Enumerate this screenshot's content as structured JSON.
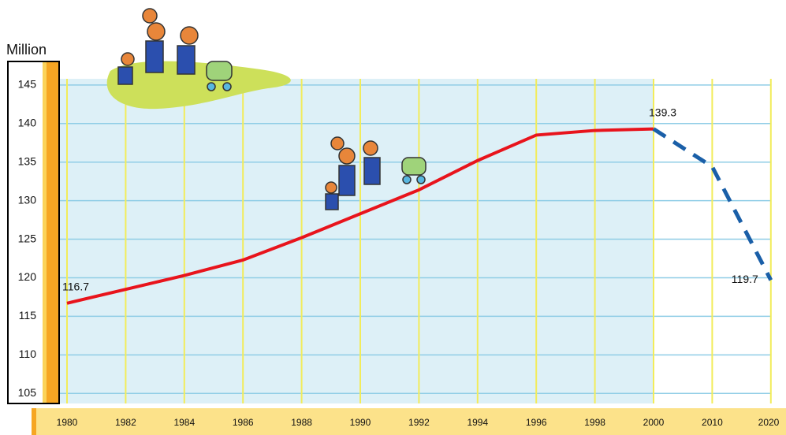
{
  "chart_data": {
    "type": "line",
    "y_axis_label": "Million",
    "categories": [
      "1980",
      "1982",
      "1984",
      "1986",
      "1988",
      "1990",
      "1992",
      "1994",
      "1996",
      "1998",
      "2000",
      "2010",
      "2020"
    ],
    "series": [
      {
        "color": "#e8141c",
        "style": "solid",
        "values": [
          116.7,
          118.5,
          120.3,
          122.3,
          125.2,
          128.3,
          131.4,
          135.2,
          138.5,
          139.1,
          139.3,
          null,
          null
        ],
        "value_labels": [
          "116.7",
          null,
          null,
          null,
          null,
          null,
          null,
          null,
          null,
          null,
          null,
          null,
          null
        ]
      },
      {
        "color": "#1a5fa8",
        "style": "dashed",
        "values": [
          null,
          null,
          null,
          null,
          null,
          null,
          null,
          null,
          null,
          null,
          139.3,
          134.4,
          119.7
        ],
        "value_labels": [
          null,
          null,
          null,
          null,
          null,
          null,
          null,
          null,
          null,
          null,
          "139.3",
          null,
          "119.7"
        ]
      }
    ],
    "ylim": [
      103.7,
      145.8
    ],
    "yticks": [
      105,
      110,
      115,
      120,
      125,
      130,
      135,
      140,
      145
    ],
    "grid": true
  }
}
